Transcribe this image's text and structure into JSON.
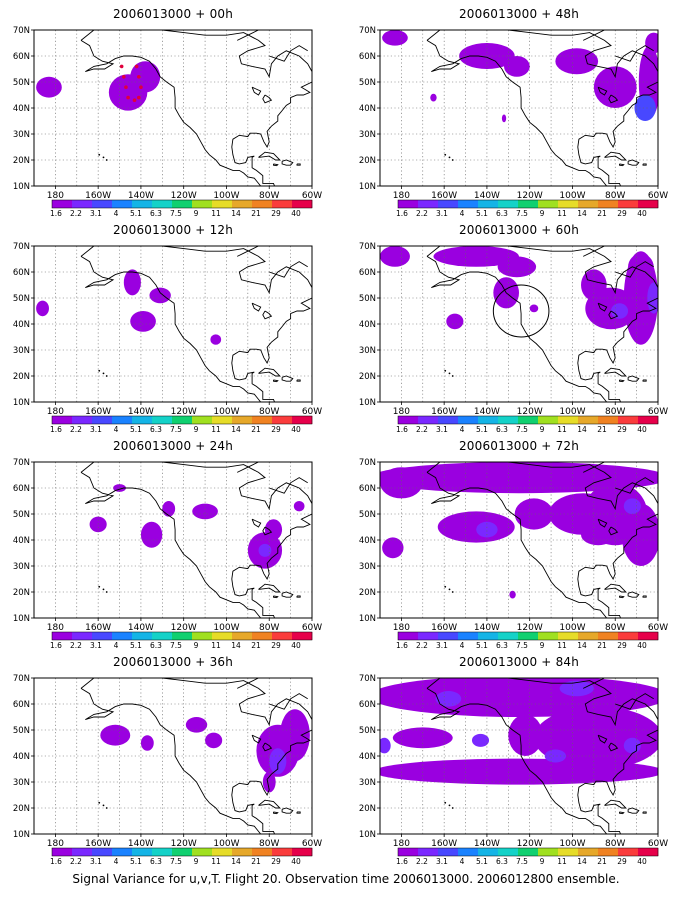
{
  "footer": "Signal Variance for u,v,T. Flight 20. Observation time 2006013000. 2006012800 ensemble.",
  "colorbar": {
    "labels": [
      "1.6",
      "2.2",
      "3.1",
      "4",
      "5.1",
      "6.3",
      "7.5",
      "9",
      "11",
      "14",
      "21",
      "29",
      "40"
    ],
    "colors": [
      "#9a00e0",
      "#7a28ff",
      "#4848ff",
      "#1a82ff",
      "#14b4e6",
      "#14d2c8",
      "#10d070",
      "#a0e020",
      "#e6dc28",
      "#e6a82a",
      "#f08222",
      "#fa3c3c",
      "#e6004a"
    ]
  },
  "chart_data": [
    {
      "type": "heatmap",
      "title": "2006013000 + 00h",
      "x_ticks": [
        "180",
        "160W",
        "140W",
        "120W",
        "100W",
        "80W",
        "60W"
      ],
      "y_ticks": [
        "10N",
        "20N",
        "30N",
        "40N",
        "50N",
        "60N",
        "70N"
      ],
      "lon_range": [
        -190,
        -60
      ],
      "lat_range": [
        10,
        70
      ],
      "blobs": [
        {
          "lon": -183,
          "lat": 48,
          "rlon": 6,
          "rlat": 4,
          "level": 1
        },
        {
          "lon": -146,
          "lat": 46,
          "rlon": 9,
          "rlat": 7,
          "level": 1
        },
        {
          "lon": -138,
          "lat": 52,
          "rlon": 7,
          "rlat": 6,
          "level": 1
        }
      ],
      "track": [
        [
          -149,
          56
        ],
        [
          -148,
          52
        ],
        [
          -147,
          48
        ],
        [
          -146,
          44
        ],
        [
          -143,
          43
        ],
        [
          -141,
          44
        ],
        [
          -140,
          48
        ],
        [
          -141,
          52
        ],
        [
          -142,
          56
        ]
      ]
    },
    {
      "type": "heatmap",
      "title": "2006013000 + 48h",
      "x_ticks": [
        "180",
        "160W",
        "140W",
        "120W",
        "100W",
        "80W",
        "60W"
      ],
      "y_ticks": [
        "10N",
        "20N",
        "30N",
        "40N",
        "50N",
        "60N",
        "70N"
      ],
      "lon_range": [
        -190,
        -60
      ],
      "lat_range": [
        10,
        70
      ],
      "blobs": [
        {
          "lon": -183,
          "lat": 67,
          "rlon": 6,
          "rlat": 3,
          "level": 1
        },
        {
          "lon": -140,
          "lat": 60,
          "rlon": 13,
          "rlat": 5,
          "level": 1
        },
        {
          "lon": -126,
          "lat": 56,
          "rlon": 6,
          "rlat": 4,
          "level": 1
        },
        {
          "lon": -98,
          "lat": 58,
          "rlon": 10,
          "rlat": 5,
          "level": 1
        },
        {
          "lon": -80,
          "lat": 48,
          "rlon": 10,
          "rlat": 8,
          "level": 1
        },
        {
          "lon": -64,
          "lat": 50,
          "rlon": 5,
          "rlat": 14,
          "level": 1
        },
        {
          "lon": -66,
          "lat": 40,
          "rlon": 5,
          "rlat": 5,
          "level": 3
        },
        {
          "lon": -62,
          "lat": 65,
          "rlon": 4,
          "rlat": 4,
          "level": 1
        },
        {
          "lon": -165,
          "lat": 44,
          "rlon": 1.5,
          "rlat": 1.5,
          "level": 1
        },
        {
          "lon": -132,
          "lat": 36,
          "rlon": 1,
          "rlat": 1.5,
          "level": 1
        }
      ],
      "track": []
    },
    {
      "type": "heatmap",
      "title": "2006013000 + 12h",
      "x_ticks": [
        "180",
        "160W",
        "140W",
        "120W",
        "100W",
        "80W",
        "60W"
      ],
      "y_ticks": [
        "10N",
        "20N",
        "30N",
        "40N",
        "50N",
        "60N",
        "70N"
      ],
      "lon_range": [
        -190,
        -60
      ],
      "lat_range": [
        10,
        70
      ],
      "blobs": [
        {
          "lon": -186,
          "lat": 46,
          "rlon": 3,
          "rlat": 3,
          "level": 1
        },
        {
          "lon": -144,
          "lat": 56,
          "rlon": 4,
          "rlat": 5,
          "level": 1
        },
        {
          "lon": -139,
          "lat": 41,
          "rlon": 6,
          "rlat": 4,
          "level": 1
        },
        {
          "lon": -131,
          "lat": 51,
          "rlon": 5,
          "rlat": 3,
          "level": 1
        },
        {
          "lon": -105,
          "lat": 34,
          "rlon": 2.5,
          "rlat": 2,
          "level": 1
        }
      ],
      "track": []
    },
    {
      "type": "heatmap",
      "title": "2006013000 + 60h",
      "x_ticks": [
        "180",
        "160W",
        "140W",
        "120W",
        "100W",
        "80W",
        "60W"
      ],
      "y_ticks": [
        "10N",
        "20N",
        "30N",
        "40N",
        "50N",
        "60N",
        "70N"
      ],
      "lon_range": [
        -190,
        -60
      ],
      "lat_range": [
        10,
        70
      ],
      "blobs": [
        {
          "lon": -183,
          "lat": 66,
          "rlon": 7,
          "rlat": 4,
          "level": 1
        },
        {
          "lon": -145,
          "lat": 66,
          "rlon": 20,
          "rlat": 4,
          "level": 1
        },
        {
          "lon": -126,
          "lat": 62,
          "rlon": 9,
          "rlat": 4,
          "level": 1
        },
        {
          "lon": -131,
          "lat": 52,
          "rlon": 6,
          "rlat": 6,
          "level": 1
        },
        {
          "lon": -155,
          "lat": 41,
          "rlon": 4,
          "rlat": 3,
          "level": 1
        },
        {
          "lon": -90,
          "lat": 55,
          "rlon": 6,
          "rlat": 6,
          "level": 1
        },
        {
          "lon": -82,
          "lat": 46,
          "rlon": 12,
          "rlat": 8,
          "level": 1
        },
        {
          "lon": -68,
          "lat": 50,
          "rlon": 8,
          "rlat": 18,
          "level": 1
        },
        {
          "lon": -68,
          "lat": 62,
          "rlon": 6,
          "rlat": 5,
          "level": 1
        },
        {
          "lon": -78,
          "lat": 45,
          "rlon": 4,
          "rlat": 3,
          "level": 2
        },
        {
          "lon": -62,
          "lat": 50,
          "rlon": 3,
          "rlat": 6,
          "level": 2
        },
        {
          "lon": -118,
          "lat": 46,
          "rlon": 2,
          "rlat": 1.5,
          "level": 1
        }
      ],
      "circle": {
        "lon": -124,
        "lat": 45,
        "rlon": 13,
        "rlat": 10
      },
      "track": []
    },
    {
      "type": "heatmap",
      "title": "2006013000 + 24h",
      "x_ticks": [
        "180",
        "160W",
        "140W",
        "120W",
        "100W",
        "80W",
        "60W"
      ],
      "y_ticks": [
        "10N",
        "20N",
        "30N",
        "40N",
        "50N",
        "60N",
        "70N"
      ],
      "lon_range": [
        -190,
        -60
      ],
      "lat_range": [
        10,
        70
      ],
      "blobs": [
        {
          "lon": -150,
          "lat": 60,
          "rlon": 3,
          "rlat": 1.5,
          "level": 1
        },
        {
          "lon": -160,
          "lat": 46,
          "rlon": 4,
          "rlat": 3,
          "level": 1
        },
        {
          "lon": -135,
          "lat": 42,
          "rlon": 5,
          "rlat": 5,
          "level": 1
        },
        {
          "lon": -127,
          "lat": 52,
          "rlon": 3,
          "rlat": 3,
          "level": 1
        },
        {
          "lon": -110,
          "lat": 51,
          "rlon": 6,
          "rlat": 3,
          "level": 1
        },
        {
          "lon": -82,
          "lat": 36,
          "rlon": 8,
          "rlat": 7,
          "level": 1
        },
        {
          "lon": -82,
          "lat": 36,
          "rlon": 3,
          "rlat": 2.5,
          "level": 2
        },
        {
          "lon": -78,
          "lat": 44,
          "rlon": 4,
          "rlat": 4,
          "level": 1
        },
        {
          "lon": -66,
          "lat": 53,
          "rlon": 2.5,
          "rlat": 2,
          "level": 1
        }
      ],
      "track": []
    },
    {
      "type": "heatmap",
      "title": "2006013000 + 72h",
      "x_ticks": [
        "180",
        "160W",
        "140W",
        "120W",
        "100W",
        "80W",
        "60W"
      ],
      "y_ticks": [
        "10N",
        "20N",
        "30N",
        "40N",
        "50N",
        "60N",
        "70N"
      ],
      "lon_range": [
        -190,
        -60
      ],
      "lat_range": [
        10,
        70
      ],
      "blobs": [
        {
          "lon": -125,
          "lat": 64,
          "rlon": 70,
          "rlat": 6,
          "level": 1
        },
        {
          "lon": -180,
          "lat": 62,
          "rlon": 10,
          "rlat": 6,
          "level": 1
        },
        {
          "lon": -145,
          "lat": 45,
          "rlon": 18,
          "rlat": 6,
          "level": 1
        },
        {
          "lon": -140,
          "lat": 44,
          "rlon": 5,
          "rlat": 3,
          "level": 2
        },
        {
          "lon": -118,
          "lat": 50,
          "rlon": 9,
          "rlat": 6,
          "level": 1
        },
        {
          "lon": -184,
          "lat": 37,
          "rlon": 5,
          "rlat": 4,
          "level": 1
        },
        {
          "lon": -95,
          "lat": 50,
          "rlon": 16,
          "rlat": 8,
          "level": 1
        },
        {
          "lon": -80,
          "lat": 50,
          "rlon": 15,
          "rlat": 12,
          "level": 1
        },
        {
          "lon": -68,
          "lat": 42,
          "rlon": 9,
          "rlat": 12,
          "level": 1
        },
        {
          "lon": -88,
          "lat": 42,
          "rlon": 8,
          "rlat": 4,
          "level": 1
        },
        {
          "lon": -72,
          "lat": 53,
          "rlon": 4,
          "rlat": 3,
          "level": 2
        },
        {
          "lon": -128,
          "lat": 19,
          "rlon": 1.5,
          "rlat": 1.5,
          "level": 1
        }
      ],
      "track": []
    },
    {
      "type": "heatmap",
      "title": "2006013000 + 36h",
      "x_ticks": [
        "180",
        "160W",
        "140W",
        "120W",
        "100W",
        "80W",
        "60W"
      ],
      "y_ticks": [
        "10N",
        "20N",
        "30N",
        "40N",
        "50N",
        "60N",
        "70N"
      ],
      "lon_range": [
        -190,
        -60
      ],
      "lat_range": [
        10,
        70
      ],
      "blobs": [
        {
          "lon": -152,
          "lat": 48,
          "rlon": 7,
          "rlat": 4,
          "level": 1
        },
        {
          "lon": -137,
          "lat": 45,
          "rlon": 3,
          "rlat": 3,
          "level": 1
        },
        {
          "lon": -114,
          "lat": 52,
          "rlon": 5,
          "rlat": 3,
          "level": 1
        },
        {
          "lon": -106,
          "lat": 46,
          "rlon": 4,
          "rlat": 3,
          "level": 1
        },
        {
          "lon": -76,
          "lat": 42,
          "rlon": 10,
          "rlat": 10,
          "level": 1
        },
        {
          "lon": -68,
          "lat": 48,
          "rlon": 7,
          "rlat": 10,
          "level": 1
        },
        {
          "lon": -76,
          "lat": 38,
          "rlon": 4,
          "rlat": 5,
          "level": 2
        },
        {
          "lon": -80,
          "lat": 30,
          "rlon": 3,
          "rlat": 4,
          "level": 1
        }
      ],
      "track": []
    },
    {
      "type": "heatmap",
      "title": "2006013000 + 84h",
      "x_ticks": [
        "180",
        "160W",
        "140W",
        "120W",
        "100W",
        "80W",
        "60W"
      ],
      "y_ticks": [
        "10N",
        "20N",
        "30N",
        "40N",
        "50N",
        "60N",
        "70N"
      ],
      "lon_range": [
        -190,
        -60
      ],
      "lat_range": [
        10,
        70
      ],
      "blobs": [
        {
          "lon": -125,
          "lat": 63,
          "rlon": 70,
          "rlat": 8,
          "level": 1
        },
        {
          "lon": -125,
          "lat": 34,
          "rlon": 68,
          "rlat": 5,
          "level": 1
        },
        {
          "lon": -170,
          "lat": 47,
          "rlon": 14,
          "rlat": 4,
          "level": 1
        },
        {
          "lon": -88,
          "lat": 47,
          "rlon": 30,
          "rlat": 12,
          "level": 1
        },
        {
          "lon": -122,
          "lat": 48,
          "rlon": 8,
          "rlat": 8,
          "level": 1
        },
        {
          "lon": -158,
          "lat": 62,
          "rlon": 6,
          "rlat": 3,
          "level": 2
        },
        {
          "lon": -143,
          "lat": 46,
          "rlon": 4,
          "rlat": 2.5,
          "level": 2
        },
        {
          "lon": -188,
          "lat": 44,
          "rlon": 3,
          "rlat": 3,
          "level": 2
        },
        {
          "lon": -108,
          "lat": 40,
          "rlon": 5,
          "rlat": 2.5,
          "level": 2
        },
        {
          "lon": -72,
          "lat": 44,
          "rlon": 4,
          "rlat": 3,
          "level": 2
        },
        {
          "lon": -98,
          "lat": 66,
          "rlon": 8,
          "rlat": 3,
          "level": 2
        }
      ],
      "track": []
    }
  ]
}
